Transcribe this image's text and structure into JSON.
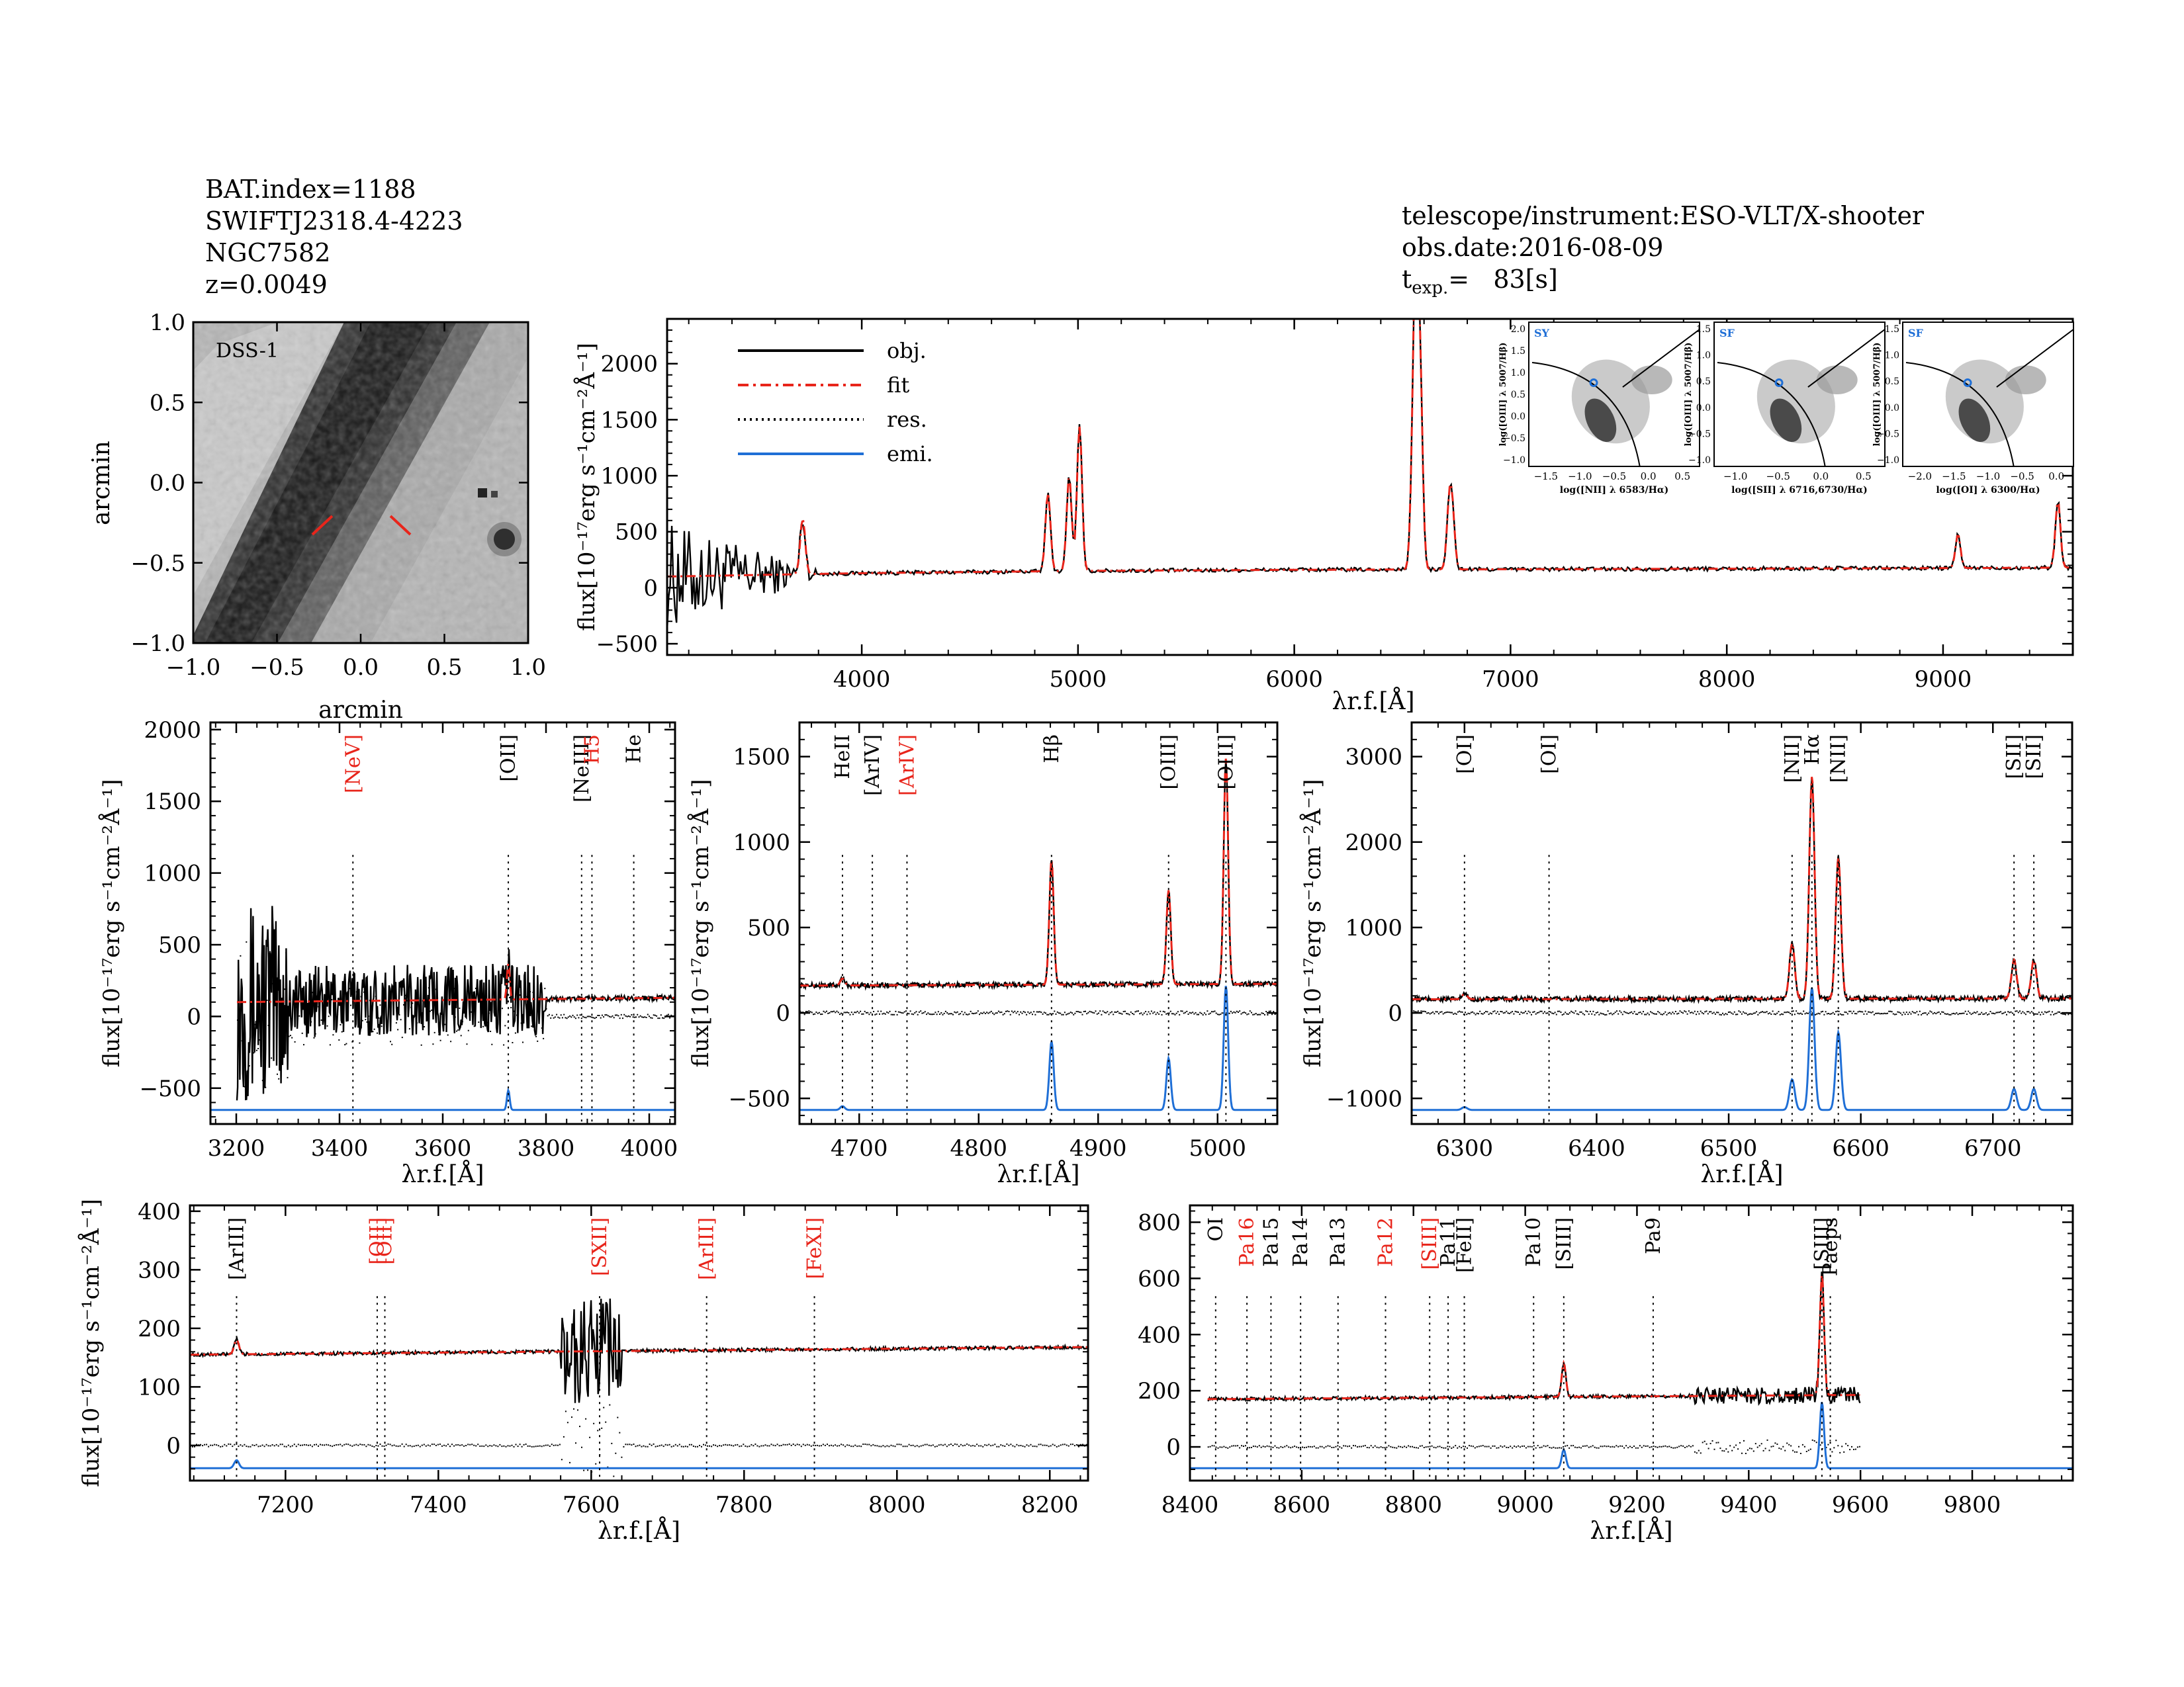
{
  "header": {
    "left": [
      "BAT.index=1188",
      "SWIFTJ2318.4-4223",
      "NGC7582",
      "z=0.0049"
    ],
    "right": [
      "telescope/instrument:ESO-VLT/X-shooter",
      "obs.date:2016-08-09"
    ],
    "texp_label": "t",
    "texp_sub": "exp.",
    "texp_value": "=   83[s]"
  },
  "image_panel": {
    "label": "DSS-1",
    "xlabel": "arcmin",
    "ylabel": "arcmin",
    "xticks": [
      "−1.0",
      "−0.5",
      "0.0",
      "0.5",
      "1.0"
    ],
    "yticks": [
      "1.0",
      "0.5",
      "0.0",
      "−0.5",
      "−1.0"
    ]
  },
  "axis_text": {
    "flux_label": "flux[10⁻¹⁷erg s⁻¹cm⁻²Å⁻¹]",
    "lambda_label": "λr.f.[Å]"
  },
  "legend": [
    {
      "label": "obj.",
      "color": "#000000",
      "style": "solid"
    },
    {
      "label": "fit",
      "color": "#e8251b",
      "style": "dashdot"
    },
    {
      "label": "res.",
      "color": "#000000",
      "style": "dotted"
    },
    {
      "label": "emi.",
      "color": "#1f6fd6",
      "style": "solid"
    }
  ],
  "colors": {
    "obj": "#000000",
    "fit": "#e8251b",
    "res": "#000000",
    "emi": "#1f6fd6",
    "red_label": "#e8251b"
  },
  "bpt_insets": [
    {
      "tag": "SY",
      "ylabel": "log([OIII] λ 5007/Hβ)",
      "xlabel": "log([NII] λ 6583/Hα)",
      "xticks": [
        "−1.5",
        "−1.0",
        "−0.5",
        "0.0",
        "0.5"
      ],
      "yticks": [
        "2.0",
        "1.5",
        "1.0",
        "0.5",
        "0.0",
        "−0.5",
        "−1.0"
      ],
      "point": [
        -0.2,
        0.75
      ]
    },
    {
      "tag": "SF",
      "ylabel": "log([OIII] λ 5007/Hβ)",
      "xlabel": "log([SII] λ 6716,6730/Hα)",
      "xticks": [
        "−1.0",
        "−0.5",
        "0.0",
        "0.5"
      ],
      "yticks": [
        "1.5",
        "1.0",
        "0.5",
        "0.0",
        "−0.5",
        "−1.0"
      ],
      "point": [
        -0.5,
        0.75
      ]
    },
    {
      "tag": "SF",
      "ylabel": "log([OIII] λ 5007/Hβ)",
      "xlabel": "log([OI] λ 6300/Hα)",
      "xticks": [
        "−2.0",
        "−1.5",
        "−1.0",
        "−0.5",
        "0.0"
      ],
      "yticks": [
        "1.5",
        "1.0",
        "0.5",
        "0.0",
        "−0.5",
        "−1.0"
      ],
      "point": [
        -1.6,
        0.75
      ]
    }
  ],
  "chart_data": [
    {
      "id": "overview",
      "type": "line",
      "xlim": [
        3100,
        9600
      ],
      "ylim": [
        -600,
        2400
      ],
      "xticks": [
        4000,
        5000,
        6000,
        7000,
        8000,
        9000
      ],
      "yticks": [
        -500,
        0,
        500,
        1000,
        1500,
        2000
      ],
      "continuum": [
        [
          3100,
          100
        ],
        [
          4000,
          130
        ],
        [
          5000,
          150
        ],
        [
          6000,
          160
        ],
        [
          7000,
          165
        ],
        [
          8000,
          170
        ],
        [
          9000,
          175
        ],
        [
          9600,
          180
        ]
      ],
      "peaks": [
        [
          3727,
          500
        ],
        [
          4861,
          700
        ],
        [
          4959,
          850
        ],
        [
          5007,
          1300
        ],
        [
          6548,
          700
        ],
        [
          6563,
          2400
        ],
        [
          6583,
          1500
        ],
        [
          6716,
          500
        ],
        [
          6731,
          450
        ],
        [
          9069,
          300
        ],
        [
          9531,
          600
        ]
      ],
      "lines": []
    },
    {
      "id": "panel_blue",
      "type": "line",
      "xlim": [
        3150,
        4050
      ],
      "ylim": [
        -750,
        2050
      ],
      "xticks": [
        3200,
        3400,
        3600,
        3800,
        4000
      ],
      "yticks": [
        -500,
        0,
        500,
        1000,
        1500,
        2000
      ],
      "continuum": [
        [
          3200,
          100
        ],
        [
          4050,
          130
        ]
      ],
      "peaks": [
        [
          3727,
          250
        ]
      ],
      "lines": [
        {
          "label": "[NeV]",
          "x": 3426,
          "red": true
        },
        {
          "label": "[OII]",
          "x": 3727,
          "red": false
        },
        {
          "label": "[NeIII]",
          "x": 3869,
          "red": false
        },
        {
          "label": "H5",
          "x": 3889,
          "red": true
        },
        {
          "label": "He",
          "x": 3970,
          "red": false
        }
      ]
    },
    {
      "id": "panel_hbeta",
      "type": "line",
      "xlim": [
        4650,
        5050
      ],
      "ylim": [
        -650,
        1700
      ],
      "xticks": [
        4700,
        4800,
        4900,
        5000
      ],
      "yticks": [
        -500,
        0,
        500,
        1000,
        1500
      ],
      "continuum": [
        [
          4650,
          160
        ],
        [
          5050,
          170
        ]
      ],
      "peaks": [
        [
          4686,
          40
        ],
        [
          4861,
          730
        ],
        [
          4959,
          550
        ],
        [
          5007,
          1320
        ]
      ],
      "lines": [
        {
          "label": "HeII",
          "x": 4686,
          "red": false
        },
        {
          "label": "[ArIV]",
          "x": 4711,
          "red": false
        },
        {
          "label": "[ArIV]",
          "x": 4740,
          "red": true
        },
        {
          "label": "Hβ",
          "x": 4861,
          "red": false
        },
        {
          "label": "[OIII]",
          "x": 4959,
          "red": false
        },
        {
          "label": "[OIII]",
          "x": 5007,
          "red": false
        }
      ]
    },
    {
      "id": "panel_halpha",
      "type": "line",
      "xlim": [
        6260,
        6760
      ],
      "ylim": [
        -1300,
        3400
      ],
      "xticks": [
        6300,
        6400,
        6500,
        6600,
        6700
      ],
      "yticks": [
        -1000,
        0,
        1000,
        2000,
        3000
      ],
      "continuum": [
        [
          6260,
          160
        ],
        [
          6760,
          170
        ]
      ],
      "peaks": [
        [
          6300,
          60
        ],
        [
          6548,
          650
        ],
        [
          6563,
          2600
        ],
        [
          6583,
          1650
        ],
        [
          6716,
          450
        ],
        [
          6731,
          450
        ]
      ],
      "lines": [
        {
          "label": "[OI]",
          "x": 6300,
          "red": false
        },
        {
          "label": "[OI]",
          "x": 6364,
          "red": false
        },
        {
          "label": "[NII]",
          "x": 6548,
          "red": false
        },
        {
          "label": "Hα",
          "x": 6563,
          "red": false
        },
        {
          "label": "[NII]",
          "x": 6583,
          "red": false
        },
        {
          "label": "[SII]",
          "x": 6716,
          "red": false
        },
        {
          "label": "[SII]",
          "x": 6731,
          "red": false
        }
      ]
    },
    {
      "id": "panel_red1",
      "type": "line",
      "xlim": [
        7075,
        8250
      ],
      "ylim": [
        -60,
        410
      ],
      "xticks": [
        7200,
        7400,
        7600,
        7800,
        8000,
        8200
      ],
      "yticks": [
        0,
        100,
        200,
        300,
        400
      ],
      "continuum": [
        [
          7075,
          155
        ],
        [
          8250,
          168
        ]
      ],
      "peaks": [
        [
          7136,
          25
        ]
      ],
      "lines": [
        {
          "label": "[ArIII]",
          "x": 7136,
          "red": false
        },
        {
          "label": "[OII]",
          "x": 7320,
          "red": true
        },
        {
          "label": "[OII]",
          "x": 7330,
          "red": true
        },
        {
          "label": "[SXII]",
          "x": 7611,
          "red": true
        },
        {
          "label": "[ArIII]",
          "x": 7751,
          "red": true
        },
        {
          "label": "[FeXI]",
          "x": 7892,
          "red": true
        }
      ]
    },
    {
      "id": "panel_red2",
      "type": "line",
      "xlim": [
        8400,
        9980
      ],
      "ylim": [
        -120,
        860
      ],
      "xticks": [
        8400,
        8600,
        8800,
        9000,
        9200,
        9400,
        9600,
        9800
      ],
      "yticks": [
        0,
        200,
        400,
        600,
        800
      ],
      "continuum": [
        [
          8430,
          170
        ],
        [
          9600,
          185
        ]
      ],
      "peaks": [
        [
          9069,
          120
        ],
        [
          9531,
          430
        ]
      ],
      "lines": [
        {
          "label": "OI",
          "x": 8446,
          "red": false
        },
        {
          "label": "Pa16",
          "x": 8502,
          "red": true
        },
        {
          "label": "Pa15",
          "x": 8545,
          "red": false
        },
        {
          "label": "Pa14",
          "x": 8598,
          "red": false
        },
        {
          "label": "Pa13",
          "x": 8665,
          "red": false
        },
        {
          "label": "Pa12",
          "x": 8750,
          "red": true
        },
        {
          "label": "[SIII]",
          "x": 8829,
          "red": true
        },
        {
          "label": "Pa11",
          "x": 8862,
          "red": false
        },
        {
          "label": "[FeII]",
          "x": 8891,
          "red": false
        },
        {
          "label": "Pa10",
          "x": 9015,
          "red": false
        },
        {
          "label": "[SIII]",
          "x": 9069,
          "red": false
        },
        {
          "label": "Pa9",
          "x": 9229,
          "red": false
        },
        {
          "label": "[SIII]",
          "x": 9531,
          "red": false
        },
        {
          "label": "Paeps",
          "x": 9546,
          "red": false
        }
      ]
    }
  ]
}
